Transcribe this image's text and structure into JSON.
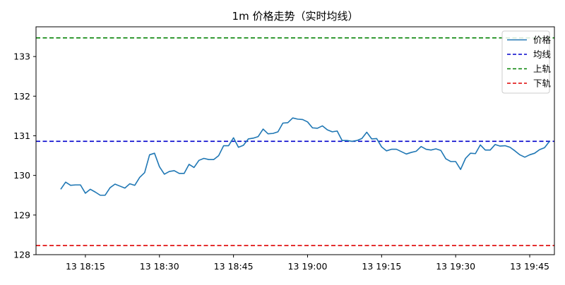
{
  "chart_data": {
    "type": "line",
    "title": "1m 价格走势（实时均线）",
    "xlabel": "",
    "ylabel": "",
    "x_start": "13 18:10",
    "x_step_minutes": 1,
    "xlim": [
      "13 18:05",
      "13 19:50"
    ],
    "ylim": [
      128.0,
      133.75
    ],
    "x_tick_labels": [
      "13 18:15",
      "13 18:30",
      "13 18:45",
      "13 19:00",
      "13 19:15",
      "13 19:30",
      "13 19:45"
    ],
    "y_ticks": [
      128,
      129,
      130,
      131,
      132,
      133
    ],
    "grid": false,
    "legend_position": "top-right",
    "series": [
      {
        "name": "价格",
        "color": "#1f77b4",
        "style": "solid",
        "values": [
          129.65,
          129.83,
          129.75,
          129.76,
          129.76,
          129.55,
          129.65,
          129.58,
          129.5,
          129.5,
          129.69,
          129.78,
          129.73,
          129.68,
          129.79,
          129.75,
          129.95,
          130.07,
          130.52,
          130.56,
          130.22,
          130.03,
          130.1,
          130.12,
          130.05,
          130.05,
          130.28,
          130.2,
          130.38,
          130.43,
          130.4,
          130.4,
          130.5,
          130.75,
          130.75,
          130.95,
          130.71,
          130.76,
          130.92,
          130.94,
          130.98,
          131.17,
          131.05,
          131.06,
          131.1,
          131.32,
          131.33,
          131.45,
          131.42,
          131.41,
          131.35,
          131.2,
          131.19,
          131.25,
          131.15,
          131.1,
          131.12,
          130.88,
          130.88,
          130.86,
          130.88,
          130.93,
          131.09,
          130.92,
          130.93,
          130.72,
          130.62,
          130.66,
          130.66,
          130.6,
          130.54,
          130.58,
          130.61,
          130.73,
          130.66,
          130.64,
          130.67,
          130.63,
          130.42,
          130.35,
          130.35,
          130.15,
          130.43,
          130.56,
          130.55,
          130.77,
          130.64,
          130.64,
          130.78,
          130.74,
          130.75,
          130.71,
          130.62,
          130.52,
          130.46,
          130.52,
          130.56,
          130.65,
          130.7,
          130.86
        ]
      },
      {
        "name": "均线",
        "color": "#0000cc",
        "style": "dashed",
        "value": 130.86
      },
      {
        "name": "上轨",
        "color": "#008000",
        "style": "dashed",
        "value": 133.47
      },
      {
        "name": "下轨",
        "color": "#dd0000",
        "style": "dashed",
        "value": 128.23
      }
    ]
  }
}
